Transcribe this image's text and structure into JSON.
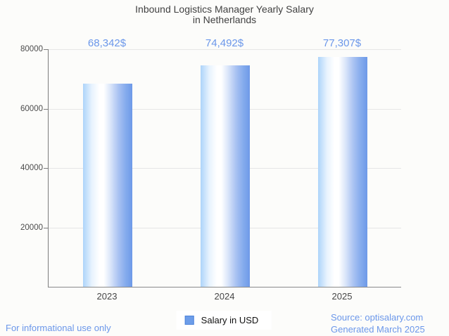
{
  "title_lines": [
    "Inbound Logistics Manager Yearly Salary",
    "in Netherlands"
  ],
  "chart_data": {
    "type": "bar",
    "title": "Inbound Logistics Manager Yearly Salary in Netherlands",
    "categories": [
      "2023",
      "2024",
      "2025"
    ],
    "values": [
      68342,
      74492,
      77307
    ],
    "value_labels": [
      "68,342$",
      "74,492$",
      "77,307$"
    ],
    "series": [
      {
        "name": "Salary in USD",
        "values": [
          68342,
          74492,
          77307
        ]
      }
    ],
    "xlabel": "",
    "ylabel": "",
    "ylim": [
      0,
      80000
    ],
    "yticks": [
      20000,
      40000,
      60000,
      80000
    ],
    "ytick_labels": [
      "20000",
      "40000",
      "60000",
      "80000"
    ],
    "grid": true,
    "legend_position": "bottom-center"
  },
  "legend": {
    "label": "Salary in USD"
  },
  "footer": {
    "note": "For informational use only",
    "source_line1": "Source: optisalary.com",
    "source_line2": "Generated March 2025"
  },
  "colors": {
    "background": "#fcfcfa",
    "title_text": "#414141",
    "axis_line": "#8a8a8a",
    "gridline": "#e6e6e6",
    "tick_text": "#4c4c4c",
    "value_text": "#6b97ea",
    "footer_text": "#6b97ea",
    "bar_left": "#add4fa",
    "bar_mid": "#ffffff",
    "bar_right": "#6d99e8",
    "legend_marker_fill": "#6d9de9",
    "legend_marker_border": "#4c83da"
  }
}
